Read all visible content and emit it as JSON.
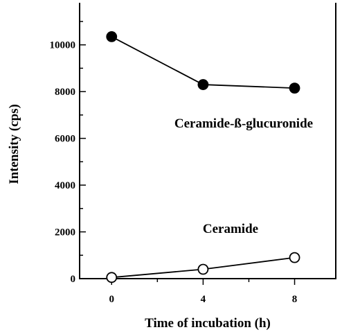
{
  "chart_data": {
    "type": "line",
    "xlabel": "Time of incubation (h)",
    "ylabel": "Intensity (cps)",
    "x_ticks": [
      0,
      4,
      8
    ],
    "y_ticks": [
      0,
      2000,
      4000,
      6000,
      8000,
      10000
    ],
    "xlim": [
      -1.4,
      9.8
    ],
    "ylim": [
      0,
      11800
    ],
    "grid": false,
    "series": [
      {
        "name": "Ceramide-ß-glucuronide",
        "marker": "filled-circle",
        "color": "#000000",
        "x": [
          0,
          4,
          8
        ],
        "y": [
          10350,
          8300,
          8150
        ]
      },
      {
        "name": "Ceramide",
        "marker": "open-circle",
        "color": "#000000",
        "x": [
          0,
          4,
          8
        ],
        "y": [
          50,
          400,
          900
        ]
      }
    ]
  }
}
